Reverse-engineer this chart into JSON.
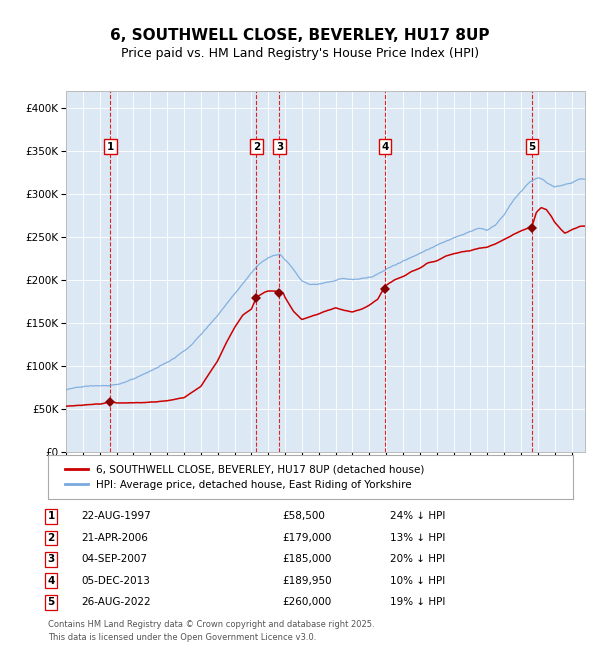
{
  "title": "6, SOUTHWELL CLOSE, BEVERLEY, HU17 8UP",
  "subtitle": "Price paid vs. HM Land Registry's House Price Index (HPI)",
  "title_fontsize": 11,
  "subtitle_fontsize": 9,
  "plot_bg_color": "#dce9f5",
  "fig_bg_color": "#ffffff",
  "purchases": [
    {
      "num": 1,
      "date_dec": 1997.64,
      "price": 58500,
      "label": "22-AUG-1997",
      "pct": "24% ↓ HPI"
    },
    {
      "num": 2,
      "date_dec": 2006.3,
      "price": 179000,
      "label": "21-APR-2006",
      "pct": "13% ↓ HPI"
    },
    {
      "num": 3,
      "date_dec": 2007.67,
      "price": 185000,
      "label": "04-SEP-2007",
      "pct": "20% ↓ HPI"
    },
    {
      "num": 4,
      "date_dec": 2013.92,
      "price": 189950,
      "label": "05-DEC-2013",
      "pct": "10% ↓ HPI"
    },
    {
      "num": 5,
      "date_dec": 2022.65,
      "price": 260000,
      "label": "26-AUG-2022",
      "pct": "19% ↓ HPI"
    }
  ],
  "ylim": [
    0,
    420000
  ],
  "xlim_start": 1995.0,
  "xlim_end": 2025.8,
  "legend_line1": "6, SOUTHWELL CLOSE, BEVERLEY, HU17 8UP (detached house)",
  "legend_line2": "HPI: Average price, detached house, East Riding of Yorkshire",
  "footer": "Contains HM Land Registry data © Crown copyright and database right 2025.\nThis data is licensed under the Open Government Licence v3.0.",
  "red_line_color": "#cc0000",
  "blue_line_color": "#7aaadd",
  "marker_color": "#880000",
  "vline_color": "#dd0000",
  "hpi_key_t": [
    1995.0,
    1995.5,
    1996.0,
    1996.5,
    1997.0,
    1997.5,
    1998.0,
    1998.5,
    1999.0,
    1999.5,
    2000.0,
    2000.5,
    2001.0,
    2001.5,
    2002.0,
    2002.5,
    2003.0,
    2003.5,
    2004.0,
    2004.5,
    2005.0,
    2005.5,
    2006.0,
    2006.5,
    2007.0,
    2007.3,
    2007.67,
    2007.9,
    2008.3,
    2008.7,
    2009.0,
    2009.5,
    2010.0,
    2010.5,
    2011.0,
    2011.5,
    2012.0,
    2012.5,
    2013.0,
    2013.5,
    2014.0,
    2014.5,
    2015.0,
    2015.5,
    2016.0,
    2016.5,
    2017.0,
    2017.5,
    2018.0,
    2018.5,
    2019.0,
    2019.5,
    2020.0,
    2020.5,
    2021.0,
    2021.5,
    2022.0,
    2022.5,
    2023.0,
    2023.3,
    2023.6,
    2024.0,
    2024.5,
    2025.0,
    2025.5
  ],
  "hpi_key_v": [
    72000,
    73000,
    74000,
    75000,
    76000,
    77000,
    79000,
    81000,
    84000,
    87000,
    91000,
    96000,
    101000,
    107000,
    115000,
    124000,
    134000,
    145000,
    157000,
    170000,
    183000,
    196000,
    208000,
    218000,
    225000,
    228000,
    230000,
    226000,
    218000,
    208000,
    200000,
    196000,
    198000,
    200000,
    202000,
    204000,
    203000,
    204000,
    206000,
    210000,
    215000,
    220000,
    225000,
    230000,
    235000,
    240000,
    245000,
    250000,
    255000,
    260000,
    264000,
    268000,
    265000,
    272000,
    285000,
    300000,
    312000,
    322000,
    328000,
    326000,
    322000,
    318000,
    320000,
    323000,
    328000
  ],
  "red_key_t": [
    1995.0,
    1996.0,
    1997.0,
    1997.64,
    1998.0,
    1999.0,
    2000.0,
    2001.0,
    2002.0,
    2003.0,
    2004.0,
    2004.5,
    2005.0,
    2005.5,
    2006.0,
    2006.3,
    2006.8,
    2007.0,
    2007.67,
    2007.9,
    2008.0,
    2008.5,
    2009.0,
    2009.5,
    2010.0,
    2010.5,
    2011.0,
    2011.5,
    2012.0,
    2012.5,
    2013.0,
    2013.5,
    2013.92,
    2014.5,
    2015.0,
    2015.5,
    2016.0,
    2016.5,
    2017.0,
    2017.5,
    2018.0,
    2018.5,
    2019.0,
    2019.5,
    2020.0,
    2020.5,
    2021.0,
    2021.5,
    2022.0,
    2022.65,
    2022.9,
    2023.2,
    2023.5,
    2023.8,
    2024.0,
    2024.3,
    2024.6,
    2025.0,
    2025.5
  ],
  "red_key_v": [
    53000,
    54000,
    55000,
    58500,
    57000,
    57500,
    58000,
    59000,
    62000,
    75000,
    105000,
    125000,
    143000,
    158000,
    165000,
    179000,
    185000,
    186000,
    185000,
    183000,
    178000,
    162000,
    152000,
    155000,
    158000,
    162000,
    165000,
    162000,
    160000,
    163000,
    168000,
    175000,
    189950,
    198000,
    202000,
    208000,
    212000,
    218000,
    220000,
    225000,
    228000,
    230000,
    232000,
    235000,
    236000,
    240000,
    245000,
    250000,
    255000,
    260000,
    276000,
    282000,
    280000,
    272000,
    265000,
    258000,
    252000,
    256000,
    260000
  ]
}
